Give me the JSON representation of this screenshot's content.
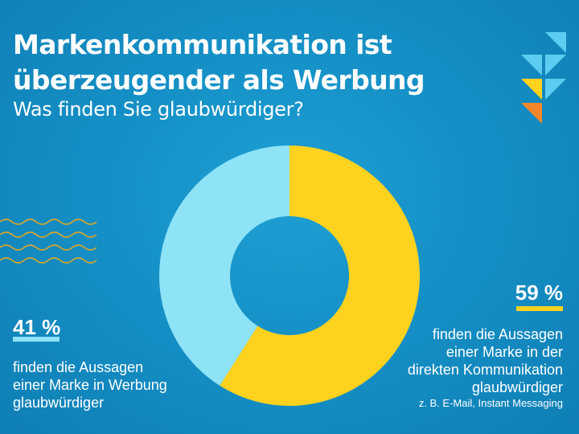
{
  "header": {
    "title_line1": "Markenkommunikation ist",
    "title_line2": "überzeugender als Werbung",
    "subtitle": "Was finden Sie glaubwürdiger?"
  },
  "chart_data": {
    "type": "pie",
    "donut": true,
    "title": "Markenkommunikation ist überzeugender als Werbung",
    "subtitle": "Was finden Sie glaubwürdiger?",
    "unit": "%",
    "slices": [
      {
        "label": "finden die Aussagen einer Marke in der direkten Kommunikation glaubwürdiger",
        "value": 59,
        "color": "#ffd21f"
      },
      {
        "label": "finden die Aussagen einer Marke in Werbung glaubwürdiger",
        "value": 41,
        "color": "#8fe3f7"
      }
    ]
  },
  "left_callout": {
    "percent": "41 %",
    "line1": "finden die Aussagen",
    "line2": "einer Marke in Werbung",
    "line3": "glaubwürdiger"
  },
  "right_callout": {
    "percent": "59 %",
    "line1": "finden die Aussagen",
    "line2": "einer Marke in der",
    "line3": "direkten Kommunikation",
    "line4": "glaubwürdiger",
    "note": "z. B. E-Mail, Instant Messaging"
  },
  "colors": {
    "background": "#1590c6",
    "yellow": "#ffd21f",
    "light_blue": "#8fe3f7",
    "orange": "#f5872a"
  },
  "decorations": {
    "corner_icon": "triangle-pattern-icon",
    "wave_icon": "wave-lines-icon"
  }
}
